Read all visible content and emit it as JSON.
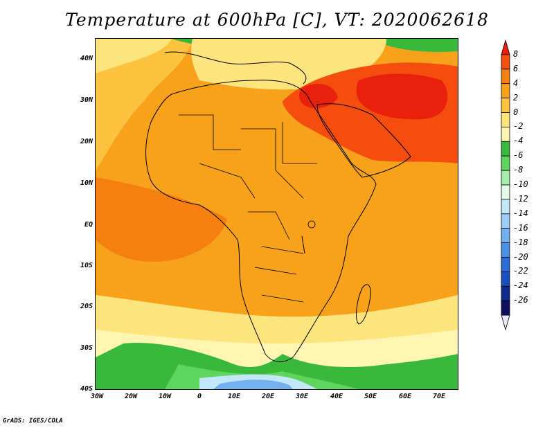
{
  "title": "Temperature at 600hPa [C], VT: 2020062618",
  "footer": "GrADS: IGES/COLA",
  "lat_labels": [
    "40N",
    "30N",
    "20N",
    "10N",
    "EQ",
    "10S",
    "20S",
    "30S",
    "40S"
  ],
  "lon_labels": [
    "30W",
    "20W",
    "10W",
    "0",
    "10E",
    "20E",
    "30E",
    "40E",
    "50E",
    "60E",
    "70E"
  ],
  "colorbar": {
    "labels": [
      "8",
      "6",
      "4",
      "2",
      "0",
      "-2",
      "-4",
      "-6",
      "-8",
      "-10",
      "-12",
      "-14",
      "-16",
      "-18",
      "-20",
      "-22",
      "-24",
      "-26"
    ],
    "colors": [
      "#e8200c",
      "#f44d0e",
      "#f57f11",
      "#f8a21c",
      "#fbc33f",
      "#fde57e",
      "#fef5b2",
      "#3ab83c",
      "#5ed65e",
      "#a4ecaa",
      "#e3fbe5",
      "#c3e6f9",
      "#9ccdf7",
      "#72b0f0",
      "#4a90e6",
      "#2a6dd8",
      "#1b4fbf",
      "#0f2a8a",
      "#111060",
      "#e8e8ff"
    ]
  }
}
